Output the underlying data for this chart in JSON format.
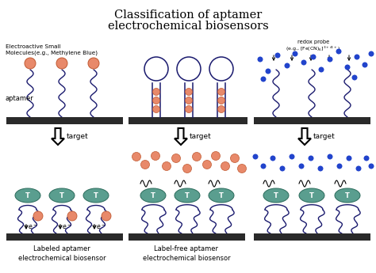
{
  "title_line1": "Classification of aptamer",
  "title_line2": "electrochemical biosensors",
  "title_fontsize": 10.5,
  "bg_color": "#ffffff",
  "electrode_color": "#2a2a2a",
  "aptamer_color": "#1a1a6e",
  "molecule_color": "#e8896a",
  "target_color": "#5a9e8f",
  "blue_dot_color": "#2244cc",
  "label1": "Labeled aptamer\nelectrochemical biosensor",
  "label2": "Label-free aptamer\nelectrochemical biosensor",
  "text_electroactive": "Electroactive Small\nMolecules(e.g., Methylene Blue)",
  "text_aptamer": "aptamer",
  "text_redox": "redox probe\n(e.g., [Fe(CN)₆]³⁺⁄⁴⁺)"
}
